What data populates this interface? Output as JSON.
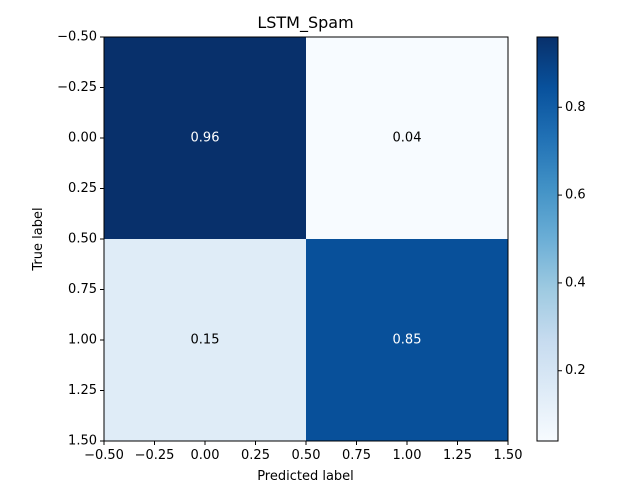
{
  "chart_data": {
    "type": "heatmap",
    "title": "LSTM_Spam",
    "xlabel": "Predicted label",
    "ylabel": "True label",
    "matrix": [
      [
        0.96,
        0.04
      ],
      [
        0.15,
        0.85
      ]
    ],
    "cell_labels": [
      [
        "0.96",
        "0.04"
      ],
      [
        "0.15",
        "0.85"
      ]
    ],
    "x_ticks": [
      -0.5,
      -0.25,
      0.0,
      0.25,
      0.5,
      0.75,
      1.0,
      1.25,
      1.5
    ],
    "x_tick_labels": [
      "−0.50",
      "−0.25",
      "0.00",
      "0.25",
      "0.50",
      "0.75",
      "1.00",
      "1.25",
      "1.50"
    ],
    "y_ticks": [
      -0.5,
      -0.25,
      0.0,
      0.25,
      0.5,
      0.75,
      1.0,
      1.25,
      1.5
    ],
    "y_tick_labels": [
      "−0.50",
      "−0.25",
      "0.00",
      "0.25",
      "0.50",
      "0.75",
      "1.00",
      "1.25",
      "1.50"
    ],
    "xlim": [
      -0.5,
      1.5
    ],
    "ylim": [
      -0.5,
      1.5
    ],
    "y_inverted": true,
    "colormap": "Blues",
    "colorbar": {
      "range": [
        0.04,
        0.96
      ],
      "ticks": [
        0.2,
        0.4,
        0.6,
        0.8
      ],
      "tick_labels": [
        "0.2",
        "0.4",
        "0.6",
        "0.8"
      ],
      "colors": [
        "#f7fbff",
        "#deebf7",
        "#c6dbef",
        "#9ecae1",
        "#6baed6",
        "#4292c6",
        "#2171b5",
        "#08519c",
        "#08306b"
      ]
    },
    "grid": false
  }
}
